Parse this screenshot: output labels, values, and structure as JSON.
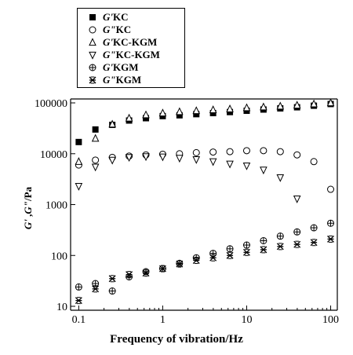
{
  "chart_data": {
    "type": "scatter",
    "xlabel": "Frequency of vibration/Hz",
    "ylabel_parts": [
      "G'",
      " ,",
      "G\"",
      "/Pa"
    ],
    "xscale": "log",
    "yscale": "log",
    "xlim": [
      0.08,
      120
    ],
    "ylim": [
      10,
      100000
    ],
    "x_ticks": [
      {
        "value": 0.1,
        "label": "0.1"
      },
      {
        "value": 1,
        "label": "1"
      },
      {
        "value": 10,
        "label": "10"
      },
      {
        "value": 100,
        "label": "100"
      }
    ],
    "y_ticks": [
      {
        "value": 10,
        "label": "10"
      },
      {
        "value": 100,
        "label": "100"
      },
      {
        "value": 1000,
        "label": "1000"
      },
      {
        "value": 10000,
        "label": "10000"
      },
      {
        "value": 100000,
        "label": "100000"
      }
    ],
    "legend_position": "top-left, outside plot",
    "series": [
      {
        "name": "G'KC",
        "modulus": "G'",
        "sample": "KC",
        "marker": "filled-square",
        "x": [
          0.1,
          0.158,
          0.251,
          0.398,
          0.631,
          1.0,
          1.585,
          2.512,
          3.981,
          6.31,
          10.0,
          15.85,
          25.12,
          39.81,
          63.1,
          100.0
        ],
        "y": [
          17000,
          30000,
          37000,
          45000,
          50000,
          55000,
          57000,
          60000,
          63000,
          66000,
          70000,
          74000,
          78000,
          82000,
          88000,
          95000
        ]
      },
      {
        "name": "G\"KC",
        "modulus": "G\"",
        "sample": "KC",
        "marker": "open-circle",
        "x": [
          0.1,
          0.158,
          0.251,
          0.398,
          0.631,
          1.0,
          1.585,
          2.512,
          3.981,
          6.31,
          10.0,
          15.85,
          25.12,
          39.81,
          63.1,
          100.0
        ],
        "y": [
          6000,
          7500,
          8500,
          9000,
          9500,
          9800,
          10000,
          10500,
          10800,
          11000,
          11500,
          11500,
          11000,
          9500,
          7000,
          2000
        ]
      },
      {
        "name": "G'KC-KGM",
        "modulus": "G'",
        "sample": "KC-KGM",
        "marker": "open-triangle-up",
        "x": [
          0.1,
          0.158,
          0.251,
          0.398,
          0.631,
          1.0,
          1.585,
          2.512,
          3.981,
          6.31,
          10.0,
          15.85,
          25.12,
          39.81,
          63.1,
          100.0
        ],
        "y": [
          7000,
          20000,
          38000,
          50000,
          58000,
          63000,
          67000,
          70000,
          73000,
          76000,
          80000,
          83000,
          86000,
          90000,
          95000,
          100000
        ]
      },
      {
        "name": "G\"KC-KGM",
        "modulus": "G\"",
        "sample": "KC-KGM",
        "marker": "open-triangle-down",
        "x": [
          0.1,
          0.158,
          0.251,
          0.398,
          0.631,
          1.0,
          1.585,
          2.512,
          3.981,
          6.31,
          10.0,
          15.85,
          25.12,
          39.81,
          63.1,
          100.0
        ],
        "y": [
          2300,
          5500,
          7500,
          8500,
          8800,
          8700,
          8200,
          7700,
          7000,
          6300,
          5800,
          4800,
          3400,
          1300,
          null,
          null
        ]
      },
      {
        "name": "G'KGM",
        "modulus": "G'",
        "sample": "KGM",
        "marker": "circle-cross",
        "x": [
          0.1,
          0.158,
          0.251,
          0.398,
          0.631,
          1.0,
          1.585,
          2.512,
          3.981,
          6.31,
          10.0,
          15.85,
          25.12,
          39.81,
          63.1,
          100.0
        ],
        "y": [
          24,
          28,
          20,
          38,
          48,
          55,
          70,
          90,
          110,
          135,
          160,
          195,
          240,
          290,
          350,
          430
        ]
      },
      {
        "name": "G\"KGM",
        "modulus": "G\"",
        "sample": "KGM",
        "marker": "asterisk",
        "x": [
          0.1,
          0.158,
          0.251,
          0.398,
          0.631,
          1.0,
          1.585,
          2.512,
          3.981,
          6.31,
          10.0,
          15.85,
          25.12,
          39.81,
          63.1,
          100.0
        ],
        "y": [
          13,
          22,
          35,
          42,
          45,
          55,
          68,
          80,
          90,
          100,
          115,
          130,
          150,
          165,
          180,
          210
        ]
      }
    ]
  }
}
